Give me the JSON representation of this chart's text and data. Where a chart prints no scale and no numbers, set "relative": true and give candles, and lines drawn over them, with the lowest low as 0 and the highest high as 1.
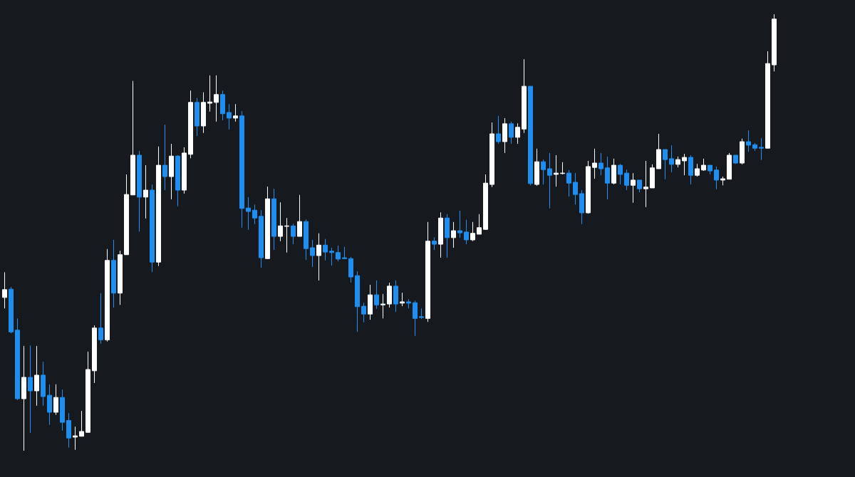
{
  "chart_data": {
    "type": "candlestick",
    "relative": true,
    "categories": [
      null,
      null,
      null,
      null,
      null,
      null,
      null,
      null,
      null,
      null,
      null,
      null,
      null,
      null,
      null,
      null,
      null,
      null,
      null,
      null,
      null,
      null,
      null,
      null,
      null,
      null,
      null,
      null,
      null,
      null,
      null,
      null,
      null,
      null,
      null,
      null,
      null,
      null,
      null,
      null,
      null,
      null,
      null,
      null,
      null,
      null,
      null,
      null,
      null,
      null,
      null,
      null,
      null,
      null,
      null,
      null,
      null,
      null,
      null,
      null,
      null,
      null,
      null,
      null,
      null,
      null,
      null,
      null,
      null,
      null,
      null,
      null,
      null,
      null,
      null,
      null,
      null,
      null,
      null,
      null,
      null,
      null,
      null,
      null,
      null,
      null,
      null,
      null,
      null,
      null,
      null,
      null,
      null,
      null,
      null,
      null,
      null,
      null,
      null,
      null,
      null,
      null,
      null,
      null,
      null,
      null,
      null,
      null,
      null,
      null,
      null,
      null,
      null,
      null,
      null,
      null,
      null,
      null,
      null,
      null,
      null
    ],
    "ohlc": [
      [
        0.351,
        0.409,
        0.326,
        0.369
      ],
      [
        0.37,
        0.375,
        0.269,
        0.272
      ],
      [
        0.276,
        0.303,
        0.116,
        0.119
      ],
      [
        0.119,
        0.24,
        0,
        0.168
      ],
      [
        0.168,
        0.241,
        0.041,
        0.137
      ],
      [
        0.137,
        0.24,
        0.103,
        0.173
      ],
      [
        0.173,
        0.204,
        0.103,
        0.124
      ],
      [
        0.127,
        0.152,
        0.059,
        0.088
      ],
      [
        0.088,
        0.152,
        0.082,
        0.122
      ],
      [
        0.122,
        0.14,
        0.046,
        0.065
      ],
      [
        0.069,
        0.086,
        0.007,
        0.029
      ],
      [
        0.031,
        0.055,
        0.002,
        0.034
      ],
      [
        0.033,
        0.091,
        0.033,
        0.044
      ],
      [
        0.042,
        0.227,
        0.041,
        0.186
      ],
      [
        0.183,
        0.287,
        0.155,
        0.281
      ],
      [
        0.281,
        0.361,
        0.245,
        0.254
      ],
      [
        0.254,
        0.462,
        0.25,
        0.436
      ],
      [
        0.436,
        0.483,
        0.328,
        0.361
      ],
      [
        0.361,
        0.458,
        0.334,
        0.449
      ],
      [
        0.449,
        0.633,
        0.449,
        0.587
      ],
      [
        0.586,
        0.847,
        0.586,
        0.677
      ],
      [
        0.677,
        0.687,
        0.502,
        0.581
      ],
      [
        0.581,
        0.654,
        0.532,
        0.597
      ],
      [
        0.597,
        0.61,
        0.409,
        0.432
      ],
      [
        0.432,
        0.697,
        0.423,
        0.654
      ],
      [
        0.654,
        0.747,
        0.597,
        0.628
      ],
      [
        0.628,
        0.703,
        0.576,
        0.675
      ],
      [
        0.675,
        0.677,
        0.56,
        0.597
      ],
      [
        0.597,
        0.695,
        0.589,
        0.682
      ],
      [
        0.679,
        0.825,
        0.67,
        0.798
      ],
      [
        0.798,
        0.808,
        0.721,
        0.744
      ],
      [
        0.744,
        0.821,
        0.728,
        0.798
      ],
      [
        0.796,
        0.86,
        0.777,
        0.799
      ],
      [
        0.798,
        0.86,
        0.754,
        0.816
      ],
      [
        0.816,
        0.825,
        0.757,
        0.772
      ],
      [
        0.775,
        0.794,
        0.736,
        0.762
      ],
      [
        0.762,
        0.794,
        0.754,
        0.767
      ],
      [
        0.767,
        0.778,
        0.511,
        0.555
      ],
      [
        0.556,
        0.581,
        0.506,
        0.548
      ],
      [
        0.551,
        0.564,
        0.519,
        0.533
      ],
      [
        0.537,
        0.551,
        0.419,
        0.442
      ],
      [
        0.44,
        0.605,
        0.44,
        0.577
      ],
      [
        0.577,
        0.6,
        0.46,
        0.491
      ],
      [
        0.491,
        0.569,
        0.48,
        0.515
      ],
      [
        0.514,
        0.533,
        0.454,
        0.515
      ],
      [
        0.515,
        0.52,
        0.473,
        0.491
      ],
      [
        0.491,
        0.586,
        0.491,
        0.525
      ],
      [
        0.525,
        0.53,
        0.437,
        0.463
      ],
      [
        0.465,
        0.483,
        0.421,
        0.447
      ],
      [
        0.447,
        0.498,
        0.39,
        0.471
      ],
      [
        0.471,
        0.485,
        0.436,
        0.455
      ],
      [
        0.457,
        0.465,
        0.424,
        0.454
      ],
      [
        0.454,
        0.47,
        0.434,
        0.439
      ],
      [
        0.442,
        0.467,
        0.44,
        0.44
      ],
      [
        0.44,
        0.444,
        0.385,
        0.398
      ],
      [
        0.401,
        0.411,
        0.272,
        0.33
      ],
      [
        0.331,
        0.339,
        0.294,
        0.313
      ],
      [
        0.313,
        0.38,
        0.3,
        0.357
      ],
      [
        0.357,
        0.39,
        0.325,
        0.334
      ],
      [
        0.334,
        0.359,
        0.303,
        0.336
      ],
      [
        0.336,
        0.385,
        0.328,
        0.377
      ],
      [
        0.377,
        0.39,
        0.318,
        0.336
      ],
      [
        0.338,
        0.362,
        0.331,
        0.341
      ],
      [
        0.341,
        0.347,
        0.326,
        0.338
      ],
      [
        0.339,
        0.344,
        0.263,
        0.303
      ],
      [
        0.307,
        0.326,
        0.302,
        0.305
      ],
      [
        0.303,
        0.524,
        0.295,
        0.48
      ],
      [
        0.48,
        0.489,
        0.46,
        0.473
      ],
      [
        0.473,
        0.546,
        0.442,
        0.533
      ],
      [
        0.533,
        0.542,
        0.442,
        0.488
      ],
      [
        0.488,
        0.524,
        0.465,
        0.504
      ],
      [
        0.504,
        0.55,
        0.488,
        0.499
      ],
      [
        0.501,
        0.529,
        0.473,
        0.483
      ],
      [
        0.483,
        0.524,
        0.48,
        0.498
      ],
      [
        0.496,
        0.542,
        0.496,
        0.511
      ],
      [
        0.507,
        0.633,
        0.506,
        0.613
      ],
      [
        0.61,
        0.752,
        0.604,
        0.726
      ],
      [
        0.726,
        0.767,
        0.703,
        0.708
      ],
      [
        0.708,
        0.762,
        0.682,
        0.749
      ],
      [
        0.749,
        0.754,
        0.703,
        0.718
      ],
      [
        0.718,
        0.75,
        0.703,
        0.741
      ],
      [
        0.737,
        0.897,
        0.728,
        0.835
      ],
      [
        0.835,
        0.835,
        0.608,
        0.612
      ],
      [
        0.61,
        0.692,
        0.607,
        0.662
      ],
      [
        0.662,
        0.667,
        0.61,
        0.644
      ],
      [
        0.646,
        0.682,
        0.555,
        0.631
      ],
      [
        0.633,
        0.677,
        0.605,
        0.636
      ],
      [
        0.635,
        0.661,
        0.633,
        0.636
      ],
      [
        0.636,
        0.643,
        0.582,
        0.613
      ],
      [
        0.615,
        0.636,
        0.564,
        0.587
      ],
      [
        0.589,
        0.597,
        0.519,
        0.545
      ],
      [
        0.545,
        0.664,
        0.543,
        0.651
      ],
      [
        0.649,
        0.692,
        0.623,
        0.659
      ],
      [
        0.659,
        0.682,
        0.631,
        0.646
      ],
      [
        0.648,
        0.674,
        0.576,
        0.613
      ],
      [
        0.613,
        0.669,
        0.61,
        0.654
      ],
      [
        0.654,
        0.657,
        0.61,
        0.633
      ],
      [
        0.636,
        0.644,
        0.597,
        0.608
      ],
      [
        0.608,
        0.636,
        0.568,
        0.62
      ],
      [
        0.62,
        0.62,
        0.592,
        0.6
      ],
      [
        0.6,
        0.664,
        0.558,
        0.604
      ],
      [
        0.602,
        0.656,
        0.602,
        0.648
      ],
      [
        0.646,
        0.726,
        0.646,
        0.69
      ],
      [
        0.69,
        0.69,
        0.622,
        0.667
      ],
      [
        0.669,
        0.7,
        0.638,
        0.656
      ],
      [
        0.656,
        0.674,
        0.649,
        0.667
      ],
      [
        0.664,
        0.68,
        0.631,
        0.672
      ],
      [
        0.672,
        0.677,
        0.61,
        0.631
      ],
      [
        0.631,
        0.657,
        0.628,
        0.646
      ],
      [
        0.643,
        0.669,
        0.641,
        0.654
      ],
      [
        0.654,
        0.654,
        0.633,
        0.641
      ],
      [
        0.643,
        0.651,
        0.599,
        0.62
      ],
      [
        0.62,
        0.628,
        0.608,
        0.623
      ],
      [
        0.622,
        0.682,
        0.622,
        0.677
      ],
      [
        0.677,
        0.677,
        0.657,
        0.659
      ],
      [
        0.659,
        0.715,
        0.656,
        0.708
      ],
      [
        0.708,
        0.734,
        0.685,
        0.7
      ],
      [
        0.701,
        0.705,
        0.687,
        0.693
      ],
      [
        0.695,
        0.716,
        0.666,
        0.693
      ],
      [
        0.693,
        0.915,
        0.693,
        0.887
      ],
      [
        0.884,
        1,
        0.869,
        0.989
      ]
    ],
    "colors": [
      "#ffffff",
      "#1e8ff0",
      "#1e8ff0",
      "#ffffff",
      "#1e8ff0",
      "#ffffff",
      "#1e8ff0",
      "#1e8ff0",
      "#ffffff",
      "#1e8ff0",
      "#1e8ff0",
      "#ffffff",
      "#ffffff",
      "#ffffff",
      "#ffffff",
      "#1e8ff0",
      "#ffffff",
      "#1e8ff0",
      "#ffffff",
      "#ffffff",
      "#ffffff",
      "#1e8ff0",
      "#ffffff",
      "#1e8ff0",
      "#ffffff",
      "#1e8ff0",
      "#ffffff",
      "#1e8ff0",
      "#ffffff",
      "#ffffff",
      "#1e8ff0",
      "#ffffff",
      "#ffffff",
      "#ffffff",
      "#1e8ff0",
      "#1e8ff0",
      "#ffffff",
      "#1e8ff0",
      "#1e8ff0",
      "#1e8ff0",
      "#1e8ff0",
      "#ffffff",
      "#1e8ff0",
      "#ffffff",
      "#ffffff",
      "#1e8ff0",
      "#ffffff",
      "#1e8ff0",
      "#1e8ff0",
      "#ffffff",
      "#1e8ff0",
      "#1e8ff0",
      "#1e8ff0",
      "#1e8ff0",
      "#1e8ff0",
      "#1e8ff0",
      "#1e8ff0",
      "#ffffff",
      "#1e8ff0",
      "#ffffff",
      "#ffffff",
      "#1e8ff0",
      "#ffffff",
      "#1e8ff0",
      "#1e8ff0",
      "#1e8ff0",
      "#ffffff",
      "#1e8ff0",
      "#ffffff",
      "#1e8ff0",
      "#ffffff",
      "#1e8ff0",
      "#1e8ff0",
      "#ffffff",
      "#ffffff",
      "#ffffff",
      "#ffffff",
      "#1e8ff0",
      "#ffffff",
      "#1e8ff0",
      "#ffffff",
      "#ffffff",
      "#1e8ff0",
      "#ffffff",
      "#1e8ff0",
      "#1e8ff0",
      "#ffffff",
      "#ffffff",
      "#1e8ff0",
      "#1e8ff0",
      "#1e8ff0",
      "#ffffff",
      "#ffffff",
      "#1e8ff0",
      "#1e8ff0",
      "#ffffff",
      "#1e8ff0",
      "#1e8ff0",
      "#ffffff",
      "#1e8ff0",
      "#ffffff",
      "#ffffff",
      "#ffffff",
      "#1e8ff0",
      "#1e8ff0",
      "#ffffff",
      "#ffffff",
      "#1e8ff0",
      "#ffffff",
      "#ffffff",
      "#1e8ff0",
      "#1e8ff0",
      "#ffffff",
      "#ffffff",
      "#1e8ff0",
      "#ffffff",
      "#1e8ff0",
      "#1e8ff0",
      "#1e8ff0",
      "#ffffff",
      "#ffffff"
    ]
  }
}
